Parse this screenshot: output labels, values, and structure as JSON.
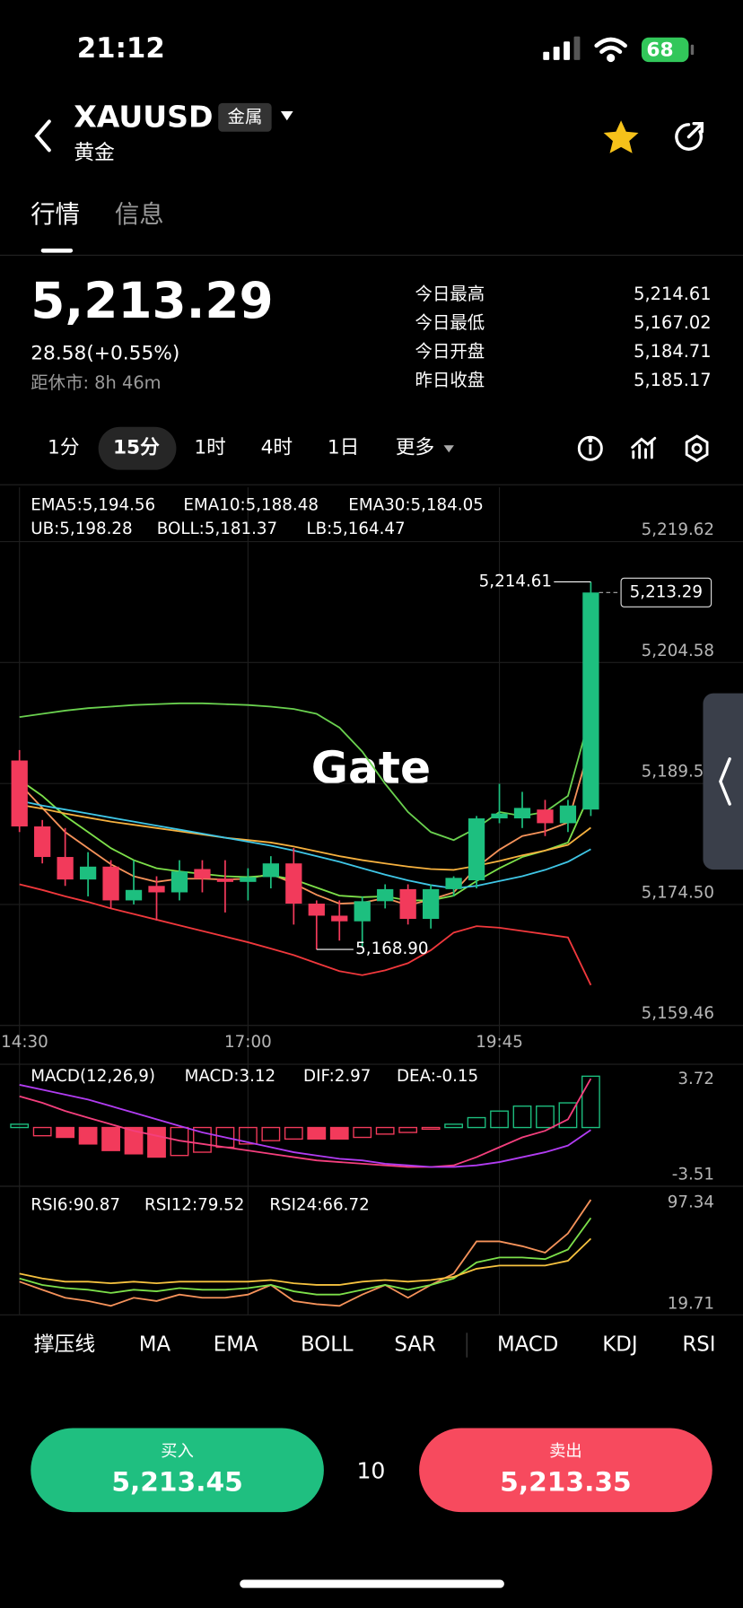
{
  "status_bar": {
    "time": "21:12",
    "battery": "68"
  },
  "header": {
    "symbol": "XAUUSD",
    "tag": "金属",
    "name": "黄金"
  },
  "tabs": [
    "行情",
    "信息"
  ],
  "quote": {
    "price": "5,213.29",
    "change": "28.58(+0.55%)",
    "market_close": "距休市: 8h 46m"
  },
  "stats": [
    {
      "label": "今日最高",
      "value": "5,214.61"
    },
    {
      "label": "今日最低",
      "value": "5,167.02"
    },
    {
      "label": "今日开盘",
      "value": "5,184.71"
    },
    {
      "label": "昨日收盘",
      "value": "5,185.17"
    }
  ],
  "timeframes": [
    "1分",
    "15分",
    "1时",
    "4时",
    "1日",
    "更多"
  ],
  "watermark": "Gate",
  "chart_data": [
    {
      "type": "candlestick",
      "categories": [
        "14:30",
        null,
        null,
        null,
        null,
        null,
        null,
        null,
        null,
        null,
        "17:00",
        null,
        null,
        null,
        null,
        null,
        null,
        null,
        null,
        null,
        null,
        "19:45",
        null,
        null,
        null,
        null
      ],
      "open": [
        5192.4,
        5184.2,
        5180.4,
        5177.6,
        5179.2,
        5175,
        5176.8,
        5176,
        5178.9,
        5177.7,
        5177.3,
        5177.9,
        5179.6,
        5174.6,
        5173.1,
        5172.4,
        5174.9,
        5176.4,
        5172.7,
        5176.4,
        5177.5,
        5185.2,
        5185.2,
        5186.3,
        5184.6,
        5186.3
      ],
      "high": [
        5193.7,
        5185,
        5184,
        5181,
        5180,
        5180,
        5178,
        5180,
        5180,
        5180,
        5179,
        5180.5,
        5181.5,
        5175,
        5175,
        5175.5,
        5177,
        5177,
        5177,
        5178,
        5185.5,
        5189.5,
        5188.5,
        5187.5,
        5187.5,
        5214.61
      ],
      "low": [
        5183.5,
        5179.6,
        5176.8,
        5175.5,
        5174,
        5174.5,
        5172.5,
        5175,
        5176,
        5173.5,
        5175,
        5176.5,
        5172,
        5168.9,
        5170,
        5169.2,
        5174,
        5172,
        5171.5,
        5175.5,
        5176.5,
        5184.6,
        5184,
        5183,
        5183.5,
        5185.5
      ],
      "close": [
        5184.2,
        5180.4,
        5177.6,
        5179.2,
        5175,
        5176.3,
        5176,
        5178.6,
        5177.7,
        5177.3,
        5177.9,
        5179.6,
        5174.6,
        5173.1,
        5172.4,
        5174.9,
        5176.4,
        5172.7,
        5176.4,
        5177.8,
        5185.2,
        5185.8,
        5186.5,
        5184.6,
        5186.8,
        5213.29
      ],
      "up_color": "#1dbf7f",
      "down_color": "#f23a5b",
      "high_label": "5,214.61",
      "low_label": "5,168.90",
      "last_label": "5,213.29",
      "series": [
        {
          "label": "EMA5:5,194.56",
          "color": "#f5925a",
          "values": [
            5189.5,
            5186.5,
            5183.5,
            5181.5,
            5179.5,
            5178,
            5177.3,
            5177.7,
            5177.7,
            5177.6,
            5177.7,
            5178.3,
            5177.1,
            5175.7,
            5174.6,
            5174.7,
            5175.3,
            5174.4,
            5175.1,
            5176,
            5179.1,
            5181.3,
            5183,
            5183.6,
            5184.7,
            5194.56
          ]
        },
        {
          "label": "EMA10:5,188.48",
          "color": "#7de04a",
          "values": [
            5190,
            5188,
            5185.5,
            5183.5,
            5181.5,
            5180,
            5179,
            5178.6,
            5178.3,
            5178,
            5177.9,
            5178.1,
            5177.6,
            5176.6,
            5175.6,
            5175.4,
            5175.5,
            5175,
            5175,
            5175.6,
            5177.4,
            5179,
            5180.4,
            5181.2,
            5182.2,
            5188.48
          ]
        },
        {
          "label": "EMA30:5,184.05",
          "color": "#f6b13f",
          "values": [
            5186.9,
            5186.4,
            5185.8,
            5185.3,
            5184.8,
            5184.4,
            5184,
            5183.6,
            5183.2,
            5182.8,
            5182.5,
            5182.2,
            5181.7,
            5181.1,
            5180.5,
            5180,
            5179.6,
            5179.2,
            5178.9,
            5178.8,
            5179.3,
            5179.9,
            5180.6,
            5181.2,
            5181.9,
            5184.05
          ]
        },
        {
          "label": "UB:5,198.28",
          "color": "#6ad14f",
          "values": [
            5197.8,
            5198.2,
            5198.6,
            5198.9,
            5199.1,
            5199.3,
            5199.4,
            5199.5,
            5199.5,
            5199.4,
            5199.3,
            5199.1,
            5198.8,
            5198.2,
            5196.5,
            5193.5,
            5189.5,
            5186,
            5183.5,
            5182.5,
            5184,
            5186,
            5185.5,
            5186,
            5188,
            5198.28
          ]
        },
        {
          "label": "BOLL:5,181.37",
          "color": "#3fc6e6",
          "values": [
            5187.4,
            5186.8,
            5186.3,
            5185.8,
            5185.3,
            5184.8,
            5184.3,
            5183.8,
            5183.3,
            5182.8,
            5182.3,
            5181.8,
            5181.2,
            5180.5,
            5179.8,
            5179,
            5178.2,
            5177.5,
            5176.9,
            5176.5,
            5176.8,
            5177.4,
            5178,
            5178.8,
            5179.8,
            5181.37
          ]
        },
        {
          "label": "LB:5,164.47",
          "color": "#f0383c",
          "values": [
            5177,
            5176.3,
            5175.5,
            5174.8,
            5174,
            5173.3,
            5172.6,
            5171.9,
            5171.2,
            5170.5,
            5169.8,
            5169,
            5168.2,
            5167.2,
            5166.2,
            5165.7,
            5166.3,
            5167.2,
            5168.8,
            5171,
            5171.8,
            5171.6,
            5171.2,
            5170.8,
            5170.4,
            5164.47
          ]
        }
      ],
      "ylim": [
        5159.46,
        5226.37
      ],
      "yticks": [
        {
          "value": 5219.62,
          "label": "5,219.62"
        },
        {
          "value": 5204.58,
          "label": "5,204.58"
        },
        {
          "value": 5189.54,
          "label": "5,189.54"
        },
        {
          "value": 5174.5,
          "label": "5,174.50"
        },
        {
          "value": 5159.46,
          "label": "5,159.46"
        }
      ],
      "grid": true
    },
    {
      "type": "macd",
      "title": "MACD(12,26,9)",
      "series": [
        {
          "label": "MACD:3.12",
          "color": "#f5925a",
          "kind": "histogram",
          "values": [
            0.2,
            -0.5,
            -0.6,
            -1.0,
            -1.4,
            -1.6,
            -1.8,
            -1.7,
            -1.5,
            -1.2,
            -1.0,
            -0.8,
            -0.7,
            -0.7,
            -0.7,
            -0.6,
            -0.4,
            -0.3,
            -0.1,
            0.2,
            0.6,
            1.0,
            1.3,
            1.3,
            1.5,
            3.12
          ]
        },
        {
          "label": "DIF:2.97",
          "color": "#f43f7d",
          "kind": "line",
          "values": [
            1.9,
            1.5,
            1.0,
            0.6,
            0.2,
            -0.2,
            -0.5,
            -0.8,
            -1.0,
            -1.2,
            -1.4,
            -1.6,
            -1.8,
            -2.0,
            -2.1,
            -2.2,
            -2.3,
            -2.4,
            -2.4,
            -2.3,
            -1.8,
            -1.2,
            -0.6,
            -0.2,
            0.5,
            2.97
          ]
        },
        {
          "label": "DEA:-0.15",
          "color": "#b13cf2",
          "kind": "line",
          "values": [
            2.6,
            2.3,
            2.0,
            1.7,
            1.3,
            0.9,
            0.5,
            0.1,
            -0.3,
            -0.6,
            -0.9,
            -1.2,
            -1.5,
            -1.7,
            -1.9,
            -2.0,
            -2.2,
            -2.3,
            -2.4,
            -2.4,
            -2.3,
            -2.1,
            -1.8,
            -1.5,
            -1.1,
            -0.15
          ]
        }
      ],
      "up_color": "#1dbf7f",
      "down_color": "#f23a5b",
      "ylim": [
        -3.51,
        3.72
      ],
      "yticks": [
        3.72,
        -3.51
      ]
    },
    {
      "type": "line",
      "series": [
        {
          "label": "RSI6:90.87",
          "color": "#f5925a",
          "values": [
            40,
            35,
            30,
            28,
            25,
            30,
            28,
            32,
            30,
            30,
            32,
            38,
            28,
            26,
            25,
            32,
            38,
            30,
            38,
            45,
            65,
            65,
            62,
            58,
            70,
            90.87
          ]
        },
        {
          "label": "RSI12:79.52",
          "color": "#7de04a",
          "values": [
            42,
            38,
            36,
            35,
            33,
            35,
            34,
            36,
            35,
            35,
            36,
            38,
            34,
            32,
            32,
            35,
            38,
            35,
            38,
            42,
            52,
            55,
            55,
            54,
            60,
            79.52
          ]
        },
        {
          "label": "RSI24:66.72",
          "color": "#f6c23f",
          "values": [
            45,
            42,
            40,
            40,
            39,
            40,
            39,
            40,
            40,
            40,
            40,
            41,
            39,
            38,
            38,
            40,
            41,
            40,
            41,
            43,
            48,
            50,
            50,
            50,
            53,
            66.72
          ]
        }
      ],
      "ylim": [
        19.71,
        97.34
      ],
      "yticks": [
        97.34,
        19.71
      ]
    }
  ],
  "indicators": [
    {
      "label": "撑压线",
      "active": false
    },
    {
      "label": "MA",
      "active": false
    },
    {
      "label": "EMA",
      "active": true
    },
    {
      "label": "BOLL",
      "active": true
    },
    {
      "label": "SAR",
      "active": false
    },
    {
      "label": "MACD",
      "active": true
    },
    {
      "label": "KDJ",
      "active": false
    },
    {
      "label": "RSI",
      "active": true
    }
  ],
  "trade": {
    "buy": {
      "label": "买入",
      "price": "5,213.45"
    },
    "quantity": "10",
    "sell": {
      "label": "卖出",
      "price": "5,213.35"
    }
  }
}
